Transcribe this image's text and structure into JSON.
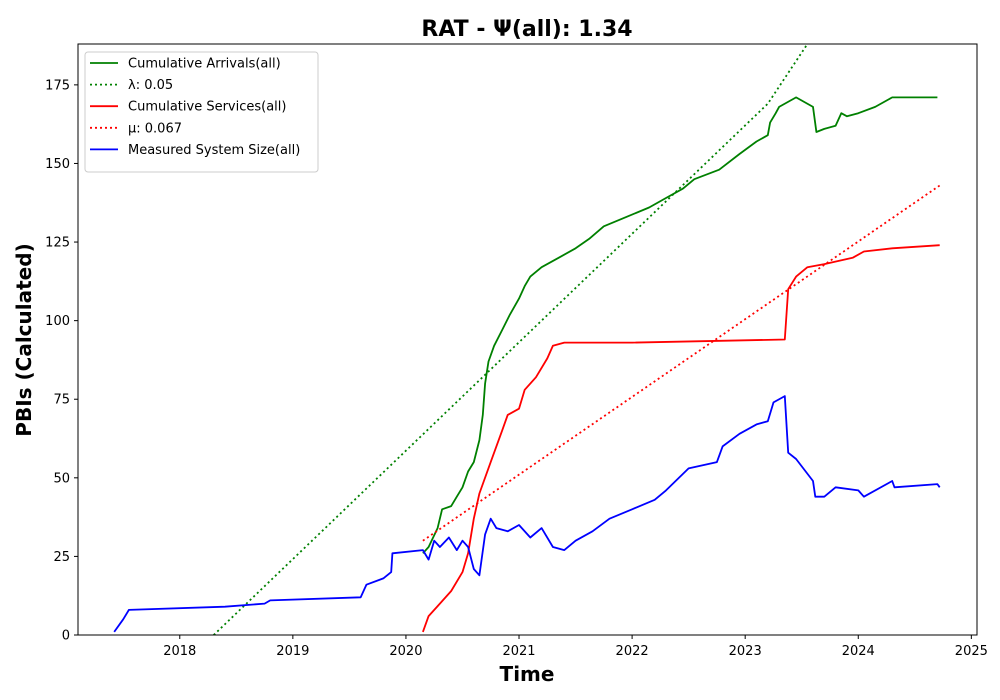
{
  "chart_data": {
    "type": "line",
    "title": "RAT -  Ψ(all): 1.34",
    "xlabel": "Time",
    "ylabel": "PBIs (Calculated)",
    "xlim": [
      2017.1,
      2025.05
    ],
    "ylim": [
      0,
      188
    ],
    "x_ticks": [
      2018,
      2019,
      2020,
      2021,
      2022,
      2023,
      2024,
      2025
    ],
    "y_ticks": [
      0,
      25,
      50,
      75,
      100,
      125,
      150,
      175
    ],
    "grid": false,
    "legend_position": "upper-left",
    "series": [
      {
        "name": "Cumulative Arrivals(all)",
        "color": "#008000",
        "style": "solid",
        "points": [
          [
            2020.15,
            26
          ],
          [
            2020.2,
            28
          ],
          [
            2020.28,
            34
          ],
          [
            2020.32,
            40
          ],
          [
            2020.4,
            41
          ],
          [
            2020.45,
            44
          ],
          [
            2020.5,
            47
          ],
          [
            2020.55,
            52
          ],
          [
            2020.6,
            55
          ],
          [
            2020.65,
            62
          ],
          [
            2020.68,
            70
          ],
          [
            2020.7,
            80
          ],
          [
            2020.73,
            87
          ],
          [
            2020.78,
            92
          ],
          [
            2020.85,
            97
          ],
          [
            2020.92,
            102
          ],
          [
            2021.0,
            107
          ],
          [
            2021.05,
            111
          ],
          [
            2021.1,
            114
          ],
          [
            2021.2,
            117
          ],
          [
            2021.35,
            120
          ],
          [
            2021.5,
            123
          ],
          [
            2021.62,
            126
          ],
          [
            2021.75,
            130
          ],
          [
            2021.95,
            133
          ],
          [
            2022.15,
            136
          ],
          [
            2022.3,
            139
          ],
          [
            2022.45,
            142
          ],
          [
            2022.55,
            145
          ],
          [
            2022.77,
            148
          ],
          [
            2022.95,
            153
          ],
          [
            2023.1,
            157
          ],
          [
            2023.2,
            159
          ],
          [
            2023.22,
            163
          ],
          [
            2023.27,
            166
          ],
          [
            2023.3,
            168
          ],
          [
            2023.45,
            171
          ],
          [
            2023.6,
            168
          ],
          [
            2023.63,
            160
          ],
          [
            2023.7,
            161
          ],
          [
            2023.8,
            162
          ],
          [
            2023.85,
            166
          ],
          [
            2023.9,
            165
          ],
          [
            2024.0,
            166
          ],
          [
            2024.15,
            168
          ],
          [
            2024.3,
            171
          ],
          [
            2024.7,
            171
          ]
        ]
      },
      {
        "name": "λ: 0.05",
        "color": "#008000",
        "style": "dotted",
        "points": [
          [
            2018.3,
            0
          ],
          [
            2023.2,
            169
          ],
          [
            2023.55,
            188
          ]
        ]
      },
      {
        "name": "Cumulative Services(all)",
        "color": "#ff0000",
        "style": "solid",
        "points": [
          [
            2020.15,
            1
          ],
          [
            2020.2,
            6
          ],
          [
            2020.3,
            10
          ],
          [
            2020.4,
            14
          ],
          [
            2020.5,
            20
          ],
          [
            2020.55,
            26
          ],
          [
            2020.6,
            37
          ],
          [
            2020.65,
            45
          ],
          [
            2020.75,
            55
          ],
          [
            2020.85,
            65
          ],
          [
            2020.9,
            70
          ],
          [
            2021.0,
            72
          ],
          [
            2021.05,
            78
          ],
          [
            2021.15,
            82
          ],
          [
            2021.25,
            88
          ],
          [
            2021.3,
            92
          ],
          [
            2021.4,
            93
          ],
          [
            2022.0,
            93
          ],
          [
            2023.35,
            94
          ],
          [
            2023.38,
            110
          ],
          [
            2023.45,
            114
          ],
          [
            2023.55,
            117
          ],
          [
            2023.7,
            118
          ],
          [
            2023.95,
            120
          ],
          [
            2024.05,
            122
          ],
          [
            2024.3,
            123
          ],
          [
            2024.72,
            124
          ]
        ]
      },
      {
        "name": "μ: 0.067",
        "color": "#ff0000",
        "style": "dotted",
        "points": [
          [
            2020.15,
            30
          ],
          [
            2024.72,
            143
          ]
        ]
      },
      {
        "name": "Measured System Size(all)",
        "color": "#0000ff",
        "style": "solid",
        "points": [
          [
            2017.42,
            1
          ],
          [
            2017.5,
            5
          ],
          [
            2017.55,
            8
          ],
          [
            2018.4,
            9
          ],
          [
            2018.75,
            10
          ],
          [
            2018.8,
            11
          ],
          [
            2019.6,
            12
          ],
          [
            2019.65,
            16
          ],
          [
            2019.8,
            18
          ],
          [
            2019.87,
            20
          ],
          [
            2019.88,
            26
          ],
          [
            2020.15,
            27
          ],
          [
            2020.2,
            24
          ],
          [
            2020.25,
            30
          ],
          [
            2020.3,
            28
          ],
          [
            2020.38,
            31
          ],
          [
            2020.45,
            27
          ],
          [
            2020.5,
            30
          ],
          [
            2020.55,
            28
          ],
          [
            2020.6,
            21
          ],
          [
            2020.65,
            19
          ],
          [
            2020.7,
            32
          ],
          [
            2020.75,
            37
          ],
          [
            2020.8,
            34
          ],
          [
            2020.9,
            33
          ],
          [
            2021.0,
            35
          ],
          [
            2021.1,
            31
          ],
          [
            2021.2,
            34
          ],
          [
            2021.3,
            28
          ],
          [
            2021.4,
            27
          ],
          [
            2021.5,
            30
          ],
          [
            2021.65,
            33
          ],
          [
            2021.8,
            37
          ],
          [
            2022.0,
            40
          ],
          [
            2022.2,
            43
          ],
          [
            2022.3,
            46
          ],
          [
            2022.5,
            53
          ],
          [
            2022.75,
            55
          ],
          [
            2022.8,
            60
          ],
          [
            2022.95,
            64
          ],
          [
            2023.1,
            67
          ],
          [
            2023.2,
            68
          ],
          [
            2023.25,
            74
          ],
          [
            2023.35,
            76
          ],
          [
            2023.38,
            58
          ],
          [
            2023.45,
            56
          ],
          [
            2023.6,
            49
          ],
          [
            2023.62,
            44
          ],
          [
            2023.7,
            44
          ],
          [
            2023.8,
            47
          ],
          [
            2024.0,
            46
          ],
          [
            2024.05,
            44
          ],
          [
            2024.3,
            49
          ],
          [
            2024.32,
            47
          ],
          [
            2024.7,
            48
          ],
          [
            2024.72,
            47
          ]
        ]
      }
    ]
  }
}
